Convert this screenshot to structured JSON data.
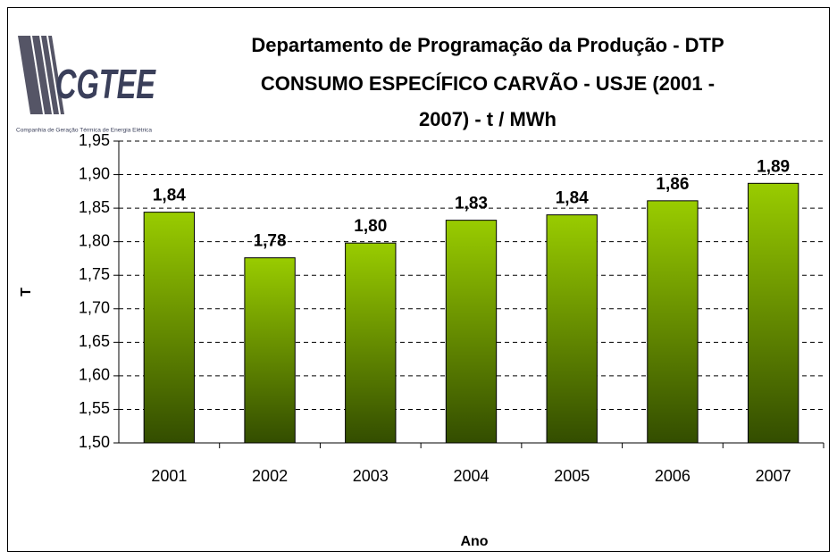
{
  "logo": {
    "name": "CGTEE",
    "tagline": "Companhia de Geração Térmica de Energia Elétrica"
  },
  "chart_data": {
    "type": "bar",
    "title": [
      "Departamento de Programação da Produção - DTP",
      "CONSUMO ESPECÍFICO CARVÃO - USJE (2001 -",
      "2007) - t / MWh"
    ],
    "x_label": "Ano",
    "y_label": "T",
    "categories": [
      "2001",
      "2002",
      "2003",
      "2004",
      "2005",
      "2006",
      "2007"
    ],
    "values": [
      1.844,
      1.776,
      1.798,
      1.832,
      1.84,
      1.861,
      1.887
    ],
    "value_labels": [
      "1,84",
      "1,78",
      "1,80",
      "1,83",
      "1,84",
      "1,86",
      "1,89"
    ],
    "color": [
      "#99cc00",
      "#334d00"
    ],
    "ylim": [
      1.5,
      1.95
    ],
    "yticks": [
      {
        "value": 1.5,
        "label": "1,50"
      },
      {
        "value": 1.55,
        "label": "1,55"
      },
      {
        "value": 1.6,
        "label": "1,60"
      },
      {
        "value": 1.65,
        "label": "1,65"
      },
      {
        "value": 1.7,
        "label": "1,70"
      },
      {
        "value": 1.75,
        "label": "1,75"
      },
      {
        "value": 1.8,
        "label": "1,80"
      },
      {
        "value": 1.85,
        "label": "1,85"
      },
      {
        "value": 1.9,
        "label": "1,90"
      },
      {
        "value": 1.95,
        "label": "1,95"
      }
    ],
    "grid": true
  }
}
